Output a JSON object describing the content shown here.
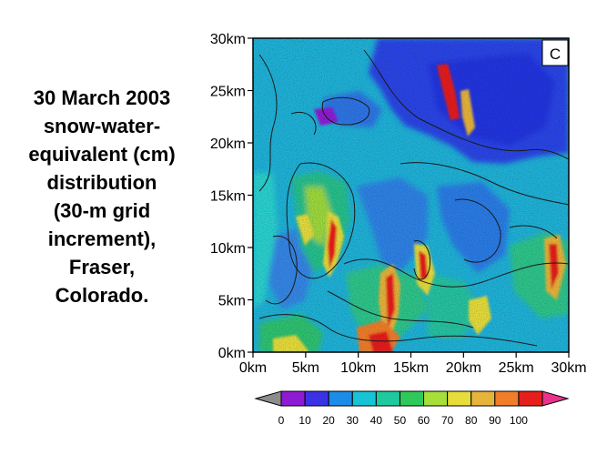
{
  "caption_lines": [
    "30 March 2003",
    "snow-water-",
    "equivalent (cm)",
    "distribution",
    "(30-m grid",
    "increment),",
    "Fraser,",
    "Colorado."
  ],
  "panel_label": "C",
  "map": {
    "x_ticks": [
      "0km",
      "5km",
      "10km",
      "15km",
      "20km",
      "25km",
      "30km"
    ],
    "y_ticks": [
      "0km",
      "5km",
      "10km",
      "15km",
      "20km",
      "25km",
      "30km"
    ]
  },
  "colorbar": {
    "labels": [
      "0",
      "10",
      "20",
      "30",
      "40",
      "50",
      "60",
      "70",
      "80",
      "90",
      "100"
    ],
    "below_color": "#8c8c8c",
    "above_color": "#e8338c",
    "colors": [
      "#8f1ad6",
      "#3b32e6",
      "#1c8ce6",
      "#19c3d6",
      "#1fc9a0",
      "#2ec95a",
      "#a6de3a",
      "#e6dc3a",
      "#e6b43a",
      "#ef7d2a",
      "#e61e1e"
    ]
  }
}
